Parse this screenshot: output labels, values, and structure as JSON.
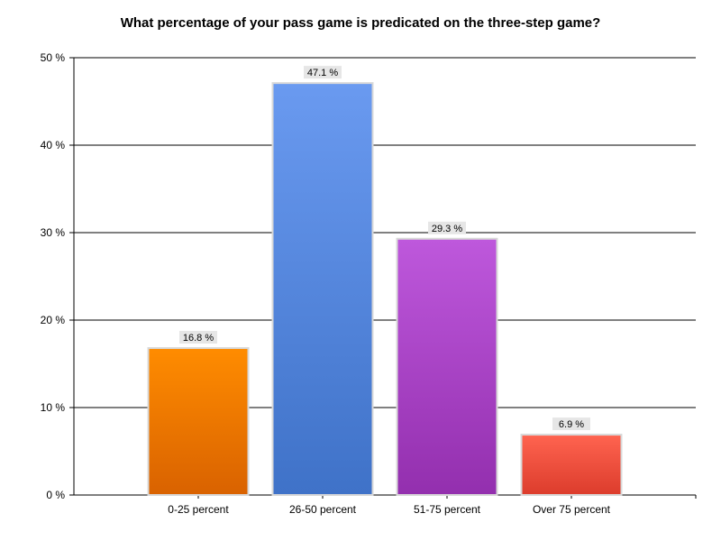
{
  "chart_data": {
    "type": "bar",
    "title": "What percentage of your pass game is predicated on the three-step game?",
    "xlabel": "",
    "ylabel": "",
    "categories": [
      "0-25 percent",
      "26-50 percent",
      "51-75 percent",
      "Over 75 percent"
    ],
    "values": [
      16.8,
      47.1,
      29.3,
      6.9
    ],
    "data_labels": [
      "16.8 %",
      "47.1 %",
      "29.3 %",
      "6.9 %"
    ],
    "ylim": [
      0,
      50
    ],
    "y_ticks": [
      0,
      10,
      20,
      30,
      40,
      50
    ],
    "y_tick_labels": [
      "0 %",
      "10 %",
      "20 %",
      "30 %",
      "40 %",
      "50 %"
    ],
    "grid": true,
    "legend": "none",
    "colors": [
      {
        "top": "#ff8c00",
        "bottom": "#d96200"
      },
      {
        "top": "#6a9af0",
        "bottom": "#3f72c8"
      },
      {
        "top": "#be58dc",
        "bottom": "#932fae"
      },
      {
        "top": "#ff6450",
        "bottom": "#dc3c2c"
      }
    ]
  }
}
